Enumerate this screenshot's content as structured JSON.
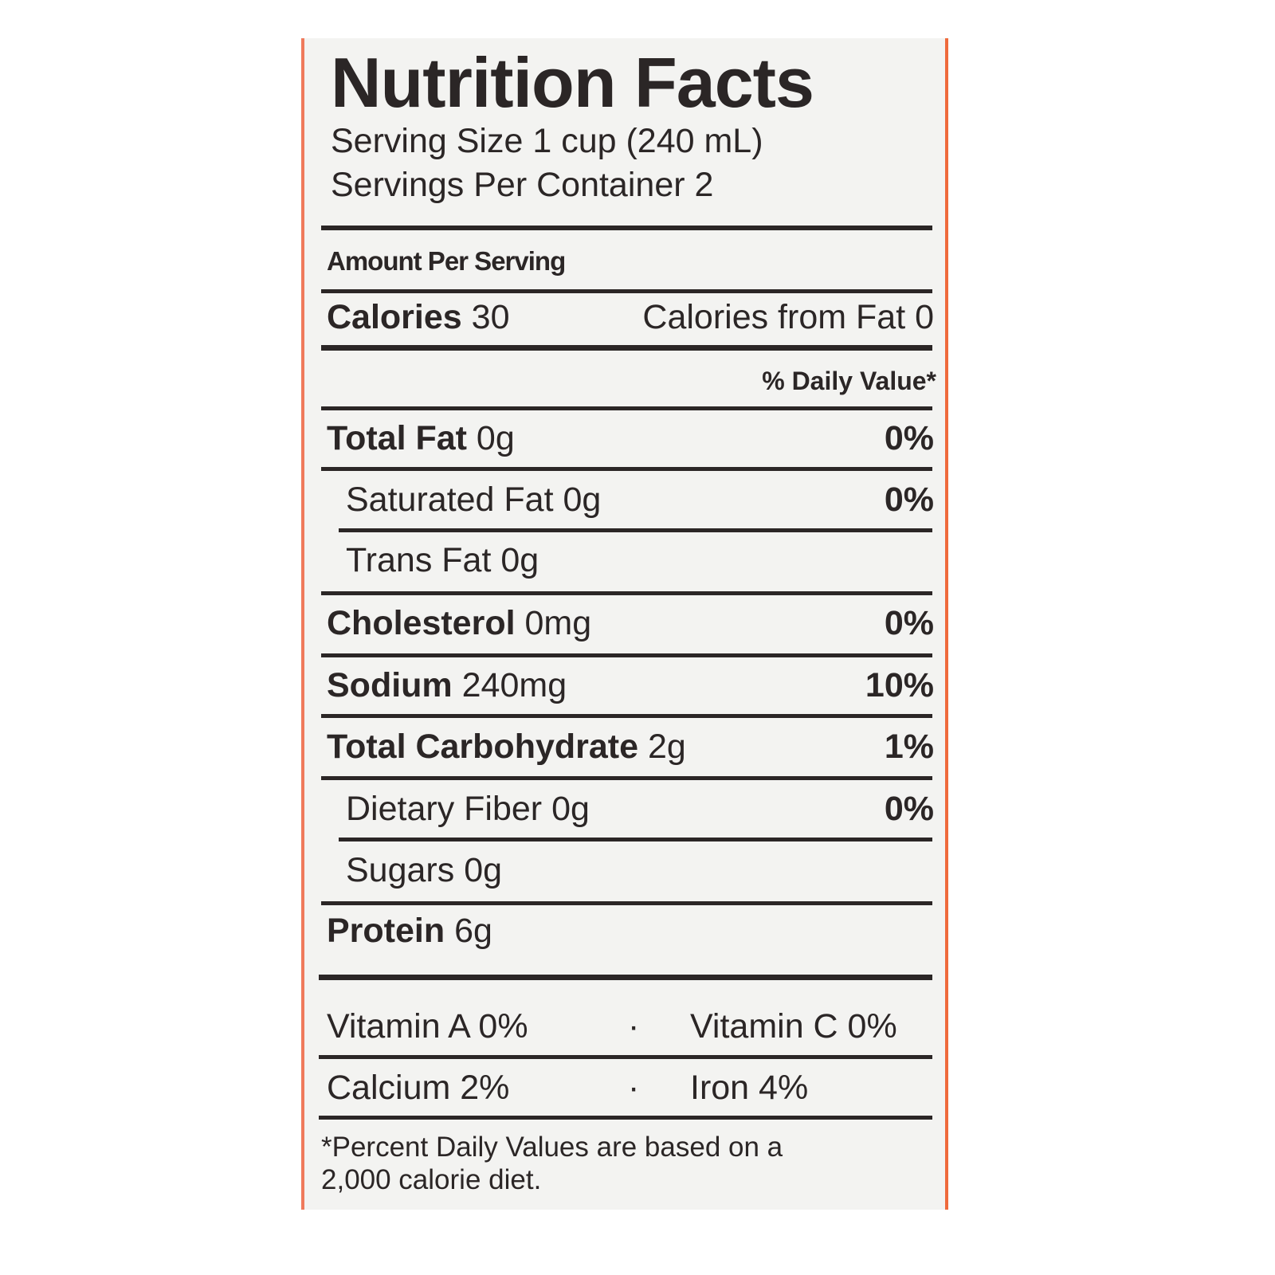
{
  "label": {
    "title": "Nutrition Facts",
    "serving_size": "Serving Size 1 cup (240 mL)",
    "servings_per_container": "Servings Per Container 2",
    "amount_per_serving": "Amount Per Serving",
    "calories_label": "Calories",
    "calories_value": "30",
    "calories_from_fat": "Calories from Fat 0",
    "daily_value_header": "% Daily Value*",
    "nutrients": [
      {
        "name": "Total Fat",
        "amount": "0g",
        "dv": "0%"
      },
      {
        "name": "Saturated Fat",
        "amount": "0g",
        "dv": "0%"
      },
      {
        "name": "Trans Fat",
        "amount": "0g",
        "dv": ""
      },
      {
        "name": "Cholesterol",
        "amount": "0mg",
        "dv": "0%"
      },
      {
        "name": "Sodium",
        "amount": "240mg",
        "dv": "10%"
      },
      {
        "name": "Total Carbohydrate",
        "amount": "2g",
        "dv": "1%"
      },
      {
        "name": "Dietary Fiber",
        "amount": "0g",
        "dv": "0%"
      },
      {
        "name": "Sugars",
        "amount": "0g",
        "dv": ""
      },
      {
        "name": "Protein",
        "amount": "6g",
        "dv": ""
      }
    ],
    "vitamins": [
      {
        "left": "Vitamin A 0%",
        "sep": "·",
        "right": "Vitamin C 0%"
      },
      {
        "left": "Calcium 2%",
        "sep": "·",
        "right": "Iron 4%"
      }
    ],
    "footnote_line1": "*Percent Daily Values are based on a",
    "footnote_line2": "2,000 calorie diet."
  },
  "colors": {
    "background": "#f3f3f1",
    "text": "#2b2626",
    "edge": "#ef6a3c"
  }
}
